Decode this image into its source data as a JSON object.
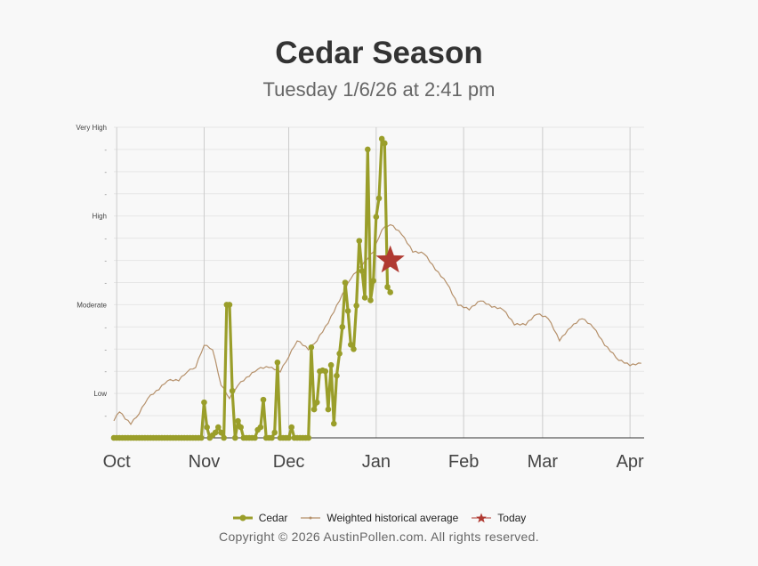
{
  "title": "Cedar Season",
  "subtitle": "Tuesday 1/6/26 at 2:41 pm",
  "copyright": "Copyright © 2026 AustinPollen.com.  All rights reserved.",
  "chart_data": {
    "type": "line",
    "x_tick_labels": [
      "Oct",
      "Nov",
      "Dec",
      "Jan",
      "Feb",
      "Mar",
      "Apr"
    ],
    "x_tick_dates": [
      "2025-10-01",
      "2025-11-01",
      "2025-12-01",
      "2026-01-01",
      "2026-02-01",
      "2026-03-01",
      "2026-04-01"
    ],
    "xlim": [
      "2025-09-30",
      "2026-04-06"
    ],
    "y_tick_labels": [
      "Low",
      "Moderate",
      "High",
      "Very High"
    ],
    "y_tick_values": [
      1,
      2,
      3,
      4
    ],
    "minor_tick_label": "-",
    "ylim": [
      0.5,
      4.0
    ],
    "grid": true,
    "legend_position": "bottom",
    "series": [
      {
        "name": "Cedar",
        "color": "#9a9e2a",
        "style": "line-with-markers",
        "points": [
          [
            "2025-09-30",
            0.5
          ],
          [
            "2025-10-31",
            0.5
          ],
          [
            "2025-11-01",
            0.9
          ],
          [
            "2025-11-02",
            0.62
          ],
          [
            "2025-11-03",
            0.5
          ],
          [
            "2025-11-05",
            0.56
          ],
          [
            "2025-11-06",
            0.62
          ],
          [
            "2025-11-07",
            0.56
          ],
          [
            "2025-11-08",
            0.5
          ],
          [
            "2025-11-09",
            2.0
          ],
          [
            "2025-11-10",
            2.0
          ],
          [
            "2025-11-11",
            1.03
          ],
          [
            "2025-11-12",
            0.5
          ],
          [
            "2025-11-13",
            0.69
          ],
          [
            "2025-11-14",
            0.62
          ],
          [
            "2025-11-15",
            0.5
          ],
          [
            "2025-11-19",
            0.5
          ],
          [
            "2025-11-20",
            0.59
          ],
          [
            "2025-11-21",
            0.62
          ],
          [
            "2025-11-22",
            0.93
          ],
          [
            "2025-11-23",
            0.5
          ],
          [
            "2025-11-25",
            0.5
          ],
          [
            "2025-11-26",
            0.56
          ],
          [
            "2025-11-27",
            1.35
          ],
          [
            "2025-11-28",
            0.5
          ],
          [
            "2025-12-01",
            0.5
          ],
          [
            "2025-12-02",
            0.62
          ],
          [
            "2025-12-03",
            0.5
          ],
          [
            "2025-12-08",
            0.5
          ],
          [
            "2025-12-09",
            1.52
          ],
          [
            "2025-12-10",
            0.82
          ],
          [
            "2025-12-11",
            0.9
          ],
          [
            "2025-12-12",
            1.25
          ],
          [
            "2025-12-13",
            1.26
          ],
          [
            "2025-12-14",
            1.25
          ],
          [
            "2025-12-15",
            0.82
          ],
          [
            "2025-12-16",
            1.32
          ],
          [
            "2025-12-17",
            0.66
          ],
          [
            "2025-12-18",
            1.2
          ],
          [
            "2025-12-19",
            1.45
          ],
          [
            "2025-12-20",
            1.75
          ],
          [
            "2025-12-21",
            2.25
          ],
          [
            "2025-12-22",
            1.93
          ],
          [
            "2025-12-23",
            1.55
          ],
          [
            "2025-12-24",
            1.5
          ],
          [
            "2025-12-25",
            1.99
          ],
          [
            "2025-12-26",
            2.72
          ],
          [
            "2025-12-27",
            2.38
          ],
          [
            "2025-12-28",
            2.08
          ],
          [
            "2025-12-29",
            3.75
          ],
          [
            "2025-12-30",
            2.05
          ],
          [
            "2025-12-31",
            2.27
          ],
          [
            "2026-01-01",
            2.99
          ],
          [
            "2026-01-02",
            3.2
          ],
          [
            "2026-01-03",
            3.87
          ],
          [
            "2026-01-04",
            3.82
          ],
          [
            "2026-01-05",
            2.2
          ],
          [
            "2026-01-06",
            2.14
          ]
        ]
      },
      {
        "name": "Weighted historical average",
        "color": "#b5906a",
        "style": "thin-line",
        "points": [
          [
            "2025-09-30",
            0.7
          ],
          [
            "2025-10-02",
            0.8
          ],
          [
            "2025-10-04",
            0.72
          ],
          [
            "2025-10-06",
            0.66
          ],
          [
            "2025-10-09",
            0.78
          ],
          [
            "2025-10-12",
            0.95
          ],
          [
            "2025-10-16",
            1.05
          ],
          [
            "2025-10-19",
            1.15
          ],
          [
            "2025-10-23",
            1.15
          ],
          [
            "2025-10-26",
            1.25
          ],
          [
            "2025-10-29",
            1.3
          ],
          [
            "2025-11-01",
            1.55
          ],
          [
            "2025-11-04",
            1.5
          ],
          [
            "2025-11-07",
            1.1
          ],
          [
            "2025-11-10",
            0.95
          ],
          [
            "2025-11-13",
            1.1
          ],
          [
            "2025-11-17",
            1.2
          ],
          [
            "2025-11-20",
            1.28
          ],
          [
            "2025-11-24",
            1.3
          ],
          [
            "2025-11-28",
            1.25
          ],
          [
            "2025-12-01",
            1.42
          ],
          [
            "2025-12-04",
            1.6
          ],
          [
            "2025-12-08",
            1.5
          ],
          [
            "2025-12-11",
            1.6
          ],
          [
            "2025-12-15",
            1.8
          ],
          [
            "2025-12-19",
            2.05
          ],
          [
            "2025-12-23",
            2.3
          ],
          [
            "2025-12-27",
            2.45
          ],
          [
            "2025-12-31",
            2.6
          ],
          [
            "2026-01-03",
            2.85
          ],
          [
            "2026-01-06",
            2.91
          ],
          [
            "2026-01-10",
            2.8
          ],
          [
            "2026-01-14",
            2.6
          ],
          [
            "2026-01-18",
            2.58
          ],
          [
            "2026-01-22",
            2.4
          ],
          [
            "2026-01-26",
            2.25
          ],
          [
            "2026-01-30",
            2.0
          ],
          [
            "2026-02-03",
            1.95
          ],
          [
            "2026-02-07",
            2.05
          ],
          [
            "2026-02-11",
            1.98
          ],
          [
            "2026-02-15",
            1.95
          ],
          [
            "2026-02-19",
            1.78
          ],
          [
            "2026-02-23",
            1.78
          ],
          [
            "2026-02-27",
            1.9
          ],
          [
            "2026-03-03",
            1.85
          ],
          [
            "2026-03-07",
            1.6
          ],
          [
            "2026-03-11",
            1.75
          ],
          [
            "2026-03-15",
            1.85
          ],
          [
            "2026-03-19",
            1.75
          ],
          [
            "2026-03-23",
            1.55
          ],
          [
            "2026-03-28",
            1.38
          ],
          [
            "2026-04-01",
            1.32
          ],
          [
            "2026-04-05",
            1.34
          ]
        ]
      },
      {
        "name": "Today",
        "color": "#b03a32",
        "style": "star-marker",
        "points": [
          [
            "2026-01-06",
            2.5
          ]
        ]
      }
    ]
  }
}
